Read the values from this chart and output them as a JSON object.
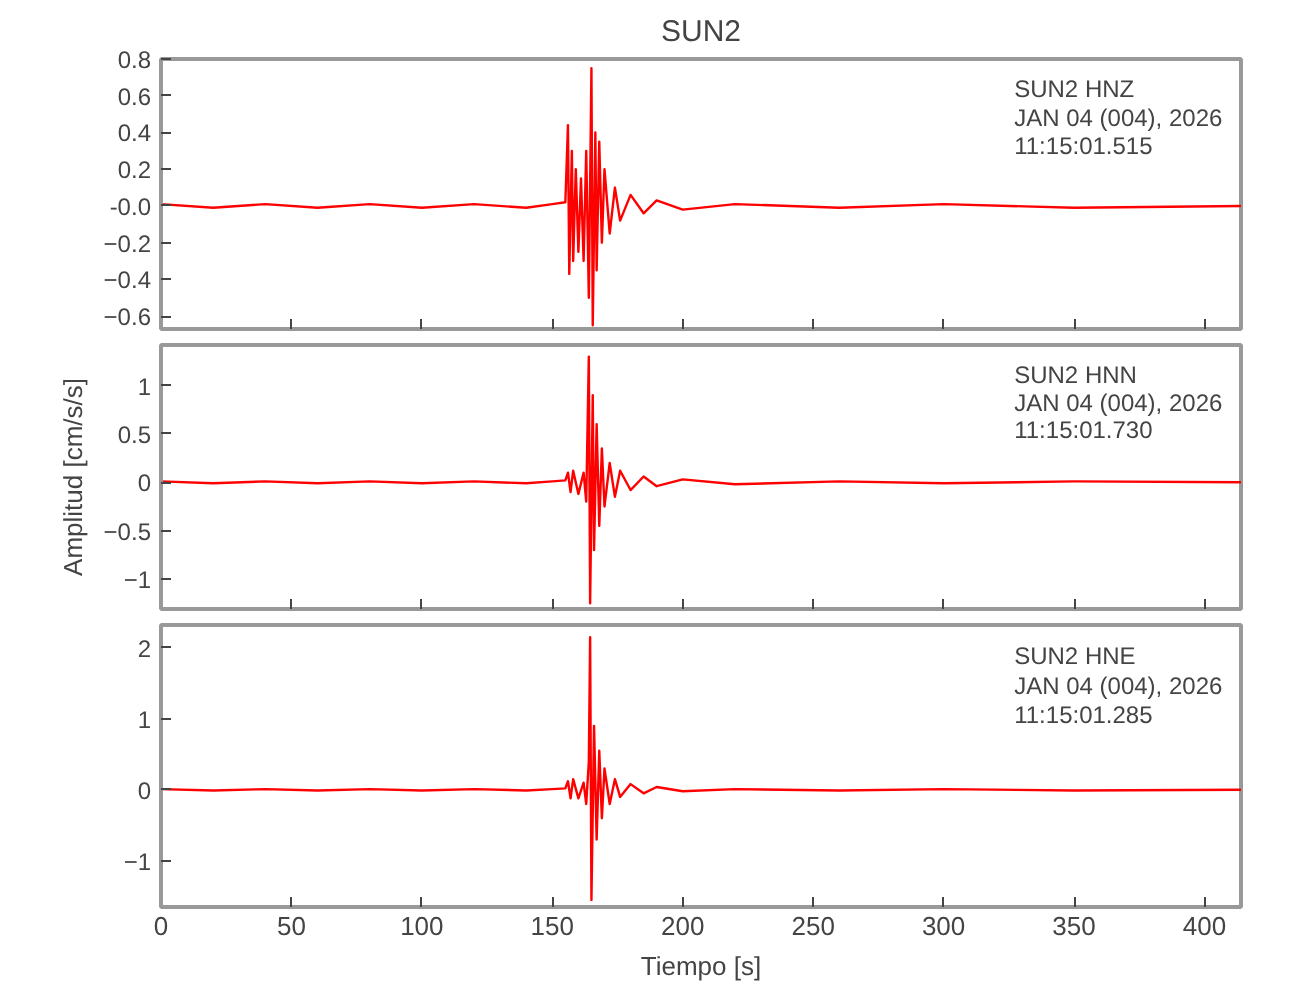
{
  "chart_data": [
    {
      "type": "line",
      "title": "SUN2",
      "annotations": [
        "SUN2   HNZ",
        "JAN 04 (004), 2026",
        "11:15:01.515"
      ],
      "xlim": [
        0,
        414
      ],
      "xticks": [
        0,
        50,
        100,
        150,
        200,
        250,
        300,
        350,
        400
      ],
      "ylim": [
        -0.67,
        0.8
      ],
      "yticks": [
        -0.6,
        -0.4,
        -0.2,
        {
          "value": 0,
          "label": "-0.0"
        },
        0.2,
        0.4,
        0.6,
        0.8
      ],
      "tick_labels": "y",
      "grid": false,
      "series": [
        {
          "color": "#ff0000",
          "x": [
            0,
            20,
            40,
            60,
            80,
            100,
            120,
            140,
            150,
            155,
            156,
            156.5,
            157.5,
            158,
            159,
            160,
            161,
            162,
            163,
            164,
            165,
            165.5,
            166.5,
            167,
            168,
            169,
            170,
            172,
            174,
            176,
            180,
            185,
            190,
            200,
            220,
            260,
            300,
            350,
            414
          ],
          "values": [
            0.01,
            -0.01,
            0.01,
            -0.01,
            0.01,
            -0.01,
            0.01,
            -0.01,
            0.01,
            0.02,
            0.44,
            -0.37,
            0.3,
            -0.3,
            0.2,
            -0.25,
            0.15,
            -0.3,
            0.3,
            -0.5,
            0.75,
            -0.65,
            0.4,
            -0.35,
            0.35,
            -0.2,
            0.2,
            -0.15,
            0.1,
            -0.08,
            0.06,
            -0.04,
            0.03,
            -0.02,
            0.01,
            -0.01,
            0.01,
            -0.01,
            0
          ]
        }
      ]
    },
    {
      "type": "line",
      "ylabel": "Amplitud [cm/s/s]",
      "annotations": [
        "SUN2   HNN",
        "JAN 04 (004), 2026",
        "11:15:01.730"
      ],
      "xlim": [
        0,
        414
      ],
      "xticks": [
        0,
        50,
        100,
        150,
        200,
        250,
        300,
        350,
        400
      ],
      "ylim": [
        -1.31,
        1.42
      ],
      "yticks": [
        -1.0,
        -0.5,
        0.0,
        0.5,
        1.0
      ],
      "tick_labels": "y",
      "grid": false,
      "series": [
        {
          "color": "#ff0000",
          "x": [
            0,
            20,
            40,
            60,
            80,
            100,
            120,
            140,
            150,
            155,
            156,
            157,
            158,
            160,
            162,
            163,
            164,
            164.5,
            165.5,
            166,
            167,
            168,
            169,
            170,
            172,
            174,
            176,
            180,
            185,
            190,
            200,
            220,
            260,
            300,
            350,
            414
          ],
          "values": [
            0.01,
            -0.01,
            0.01,
            -0.01,
            0.01,
            -0.01,
            0.01,
            -0.01,
            0.01,
            0.02,
            0.1,
            -0.1,
            0.12,
            -0.12,
            0.1,
            -0.2,
            1.3,
            -1.25,
            0.9,
            -0.7,
            0.6,
            -0.45,
            0.35,
            -0.25,
            0.2,
            -0.15,
            0.12,
            -0.08,
            0.06,
            -0.04,
            0.03,
            -0.02,
            0.01,
            -0.01,
            0.01,
            0
          ]
        }
      ]
    },
    {
      "type": "line",
      "xlabel": "Tiempo [s]",
      "annotations": [
        "SUN2   HNE",
        "JAN 04 (004), 2026",
        "11:15:01.285"
      ],
      "xlim": [
        0,
        414
      ],
      "xticks": [
        0,
        50,
        100,
        150,
        200,
        250,
        300,
        350,
        400
      ],
      "ylim": [
        -1.65,
        2.32
      ],
      "yticks": [
        -1,
        0,
        1,
        2
      ],
      "grid": false,
      "series": [
        {
          "color": "#ff0000",
          "x": [
            0,
            20,
            40,
            60,
            80,
            100,
            120,
            140,
            150,
            155,
            156,
            157,
            158,
            160,
            162,
            163,
            164,
            164.5,
            165,
            166,
            167,
            168,
            169,
            170,
            172,
            174,
            176,
            180,
            185,
            190,
            200,
            220,
            260,
            300,
            350,
            414
          ],
          "values": [
            0.01,
            -0.01,
            0.01,
            -0.01,
            0.01,
            -0.01,
            0.01,
            -0.01,
            0.01,
            0.02,
            0.12,
            -0.12,
            0.15,
            -0.12,
            0.1,
            -0.2,
            0.4,
            2.15,
            -1.55,
            0.9,
            -0.7,
            0.55,
            -0.4,
            0.3,
            -0.2,
            0.15,
            -0.1,
            0.08,
            -0.05,
            0.04,
            -0.02,
            0.01,
            -0.01,
            0.01,
            -0.01,
            0
          ]
        }
      ]
    }
  ]
}
